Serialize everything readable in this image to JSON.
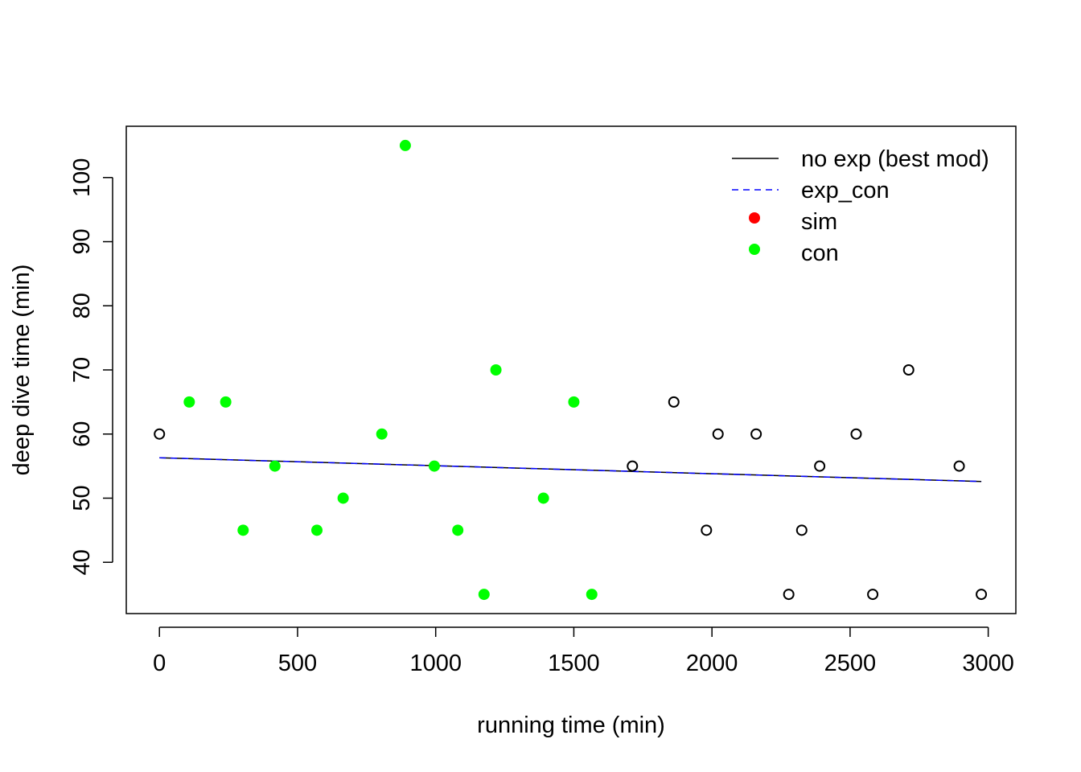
{
  "chart_data": {
    "type": "scatter",
    "title": "",
    "xlabel": "running time (min)",
    "ylabel": "deep dive time (min)",
    "xlim": [
      -120,
      3100
    ],
    "ylim": [
      32,
      108
    ],
    "x_ticks": [
      "0",
      "500",
      "1000",
      "1500",
      "2000",
      "2500",
      "3000"
    ],
    "x_tick_values": [
      0,
      500,
      1000,
      1500,
      2000,
      2500,
      3000
    ],
    "y_ticks": [
      "40",
      "50",
      "60",
      "70",
      "80",
      "90",
      "100"
    ],
    "y_tick_values": [
      40,
      50,
      60,
      70,
      80,
      90,
      100
    ],
    "grid": false,
    "legend_position": "top-right",
    "legend": [
      {
        "label": "no exp (best mod)",
        "kind": "line",
        "color": "#000000",
        "dash": "solid"
      },
      {
        "label": " exp_con",
        "kind": "line",
        "color": "#0000ff",
        "dash": "dashed"
      },
      {
        "label": "sim",
        "kind": "point",
        "color": "#ff0000"
      },
      {
        "label": "con",
        "kind": "point",
        "color": "#00ff00"
      }
    ],
    "series": [
      {
        "name": "con",
        "marker": "filled",
        "color": "#00ff00",
        "x": [
          108,
          240,
          303,
          418,
          570,
          665,
          805,
          890,
          995,
          1080,
          1175,
          1218,
          1390,
          1500,
          1565
        ],
        "y": [
          65,
          65,
          45,
          55,
          45,
          50,
          60,
          105,
          55,
          45,
          35,
          70,
          50,
          65,
          35
        ]
      },
      {
        "name": "",
        "marker": "open",
        "color": "#000000",
        "x": [
          0,
          1712,
          1862,
          1980,
          2022,
          2160,
          2278,
          2325,
          2390,
          2522,
          2582,
          2712,
          2895,
          2975
        ],
        "y": [
          60,
          55,
          65,
          45,
          60,
          60,
          35,
          45,
          55,
          60,
          35,
          70,
          55,
          35
        ]
      }
    ],
    "lines": [
      {
        "name": "no exp (best mod)",
        "color": "#000000",
        "dash": "solid",
        "x": [
          0,
          2975
        ],
        "y": [
          56.3,
          52.6
        ]
      },
      {
        "name": "exp_con",
        "color": "#0000ff",
        "dash": "dashed",
        "x": [
          0,
          2975
        ],
        "y": [
          56.3,
          52.6
        ]
      }
    ]
  }
}
